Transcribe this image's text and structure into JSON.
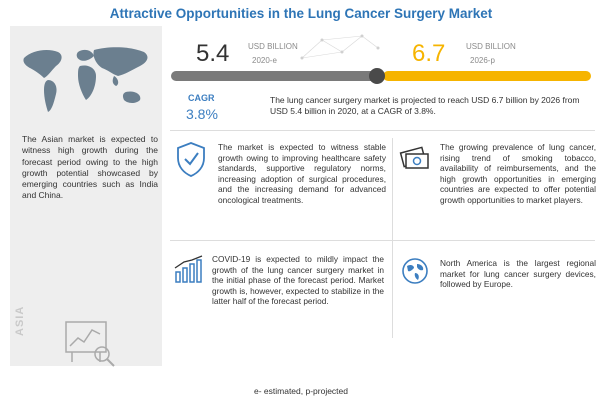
{
  "title": "Attractive Opportunities in the Lung Cancer Surgery Market",
  "market_2020": {
    "value": "5.4",
    "unit": "USD BILLION",
    "year": "2020-e"
  },
  "market_2026": {
    "value": "6.7",
    "unit": "USD BILLION",
    "year": "2026-p"
  },
  "cagr": {
    "label": "CAGR",
    "value": "3.8%"
  },
  "projection_text": "The lung cancer surgery market is projected to reach USD 6.7 billion by 2026 from USD 5.4 billion in 2020, at a CAGR of 3.8%.",
  "asia_text": "The Asian market is expected to witness high growth during the forecast period owing to the high growth potential showcased by emerging countries such as India and China.",
  "asia_label": "ASIA",
  "growth_text": "The market is expected to witness stable growth owing to improving healthcare safety standards, supportive regulatory norms, increasing adoption of surgical procedures, and the increasing demand for advanced oncological treatments.",
  "prevalence_text": "The growing prevalence of lung cancer, rising trend of smoking tobacco, availability of reimbursements, and the high growth opportunities in emerging countries are expected to offer potential growth opportunities to market players.",
  "covid_text": "COVID-19 is expected to mildly impact the growth of the lung cancer surgery market in the initial phase of the forecast period. Market growth is, however, expected to stabilize in the latter half of the forecast period.",
  "north_america_text": "North America is the largest regional market for lung cancer surgery devices, followed by Europe.",
  "footnote": "e- estimated, p-projected",
  "colors": {
    "title": "#2e75b6",
    "accent_blue": "#3c7ec0",
    "accent_yellow": "#f6b400",
    "gray_bar": "#7a7a7a",
    "panel": "#eeeeee"
  },
  "icons": [
    "world-map-icon",
    "analytics-chart-icon",
    "shield-check-icon",
    "money-bills-icon",
    "bar-chart-growth-icon",
    "globe-icon",
    "network-dots-icon"
  ]
}
